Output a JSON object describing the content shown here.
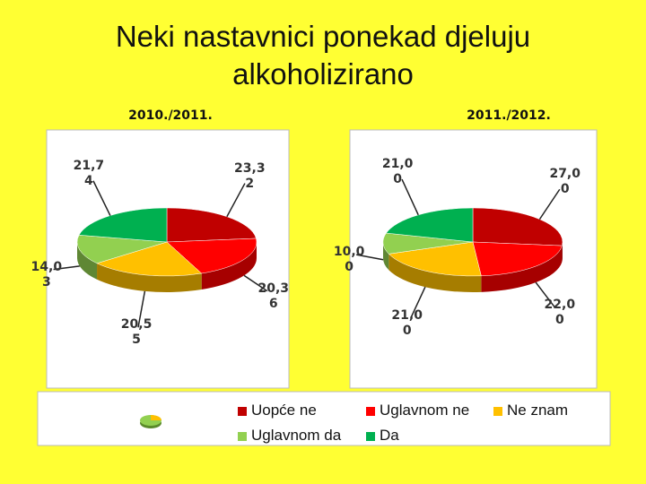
{
  "title": "Neki nastavnici ponekad djeluju alkoholizirano",
  "chart_data": [
    {
      "type": "pie",
      "subtitle": "2010./2011.",
      "categories": [
        "Uopće ne",
        "Uglavnom ne",
        "Ne znam",
        "Uglavnom da",
        "Da"
      ],
      "colors": [
        "#c00000",
        "#ff0000",
        "#ffc000",
        "#92d050",
        "#00b050"
      ],
      "values": [
        23.32,
        20.36,
        20.55,
        14.03,
        21.74
      ],
      "value_labels": [
        "23,32",
        "20,36",
        "20,55",
        "14,03",
        "21,74"
      ]
    },
    {
      "type": "pie",
      "subtitle": "2011./2012.",
      "categories": [
        "Uopće ne",
        "Uglavnom ne",
        "Ne znam",
        "Uglavnom da",
        "Da"
      ],
      "colors": [
        "#c00000",
        "#ff0000",
        "#ffc000",
        "#92d050",
        "#00b050"
      ],
      "values": [
        27.0,
        22.0,
        21.0,
        10.0,
        21.0
      ],
      "value_labels": [
        "27,00",
        "22,00",
        "21,00",
        "10,00",
        "21,00"
      ]
    }
  ]
}
